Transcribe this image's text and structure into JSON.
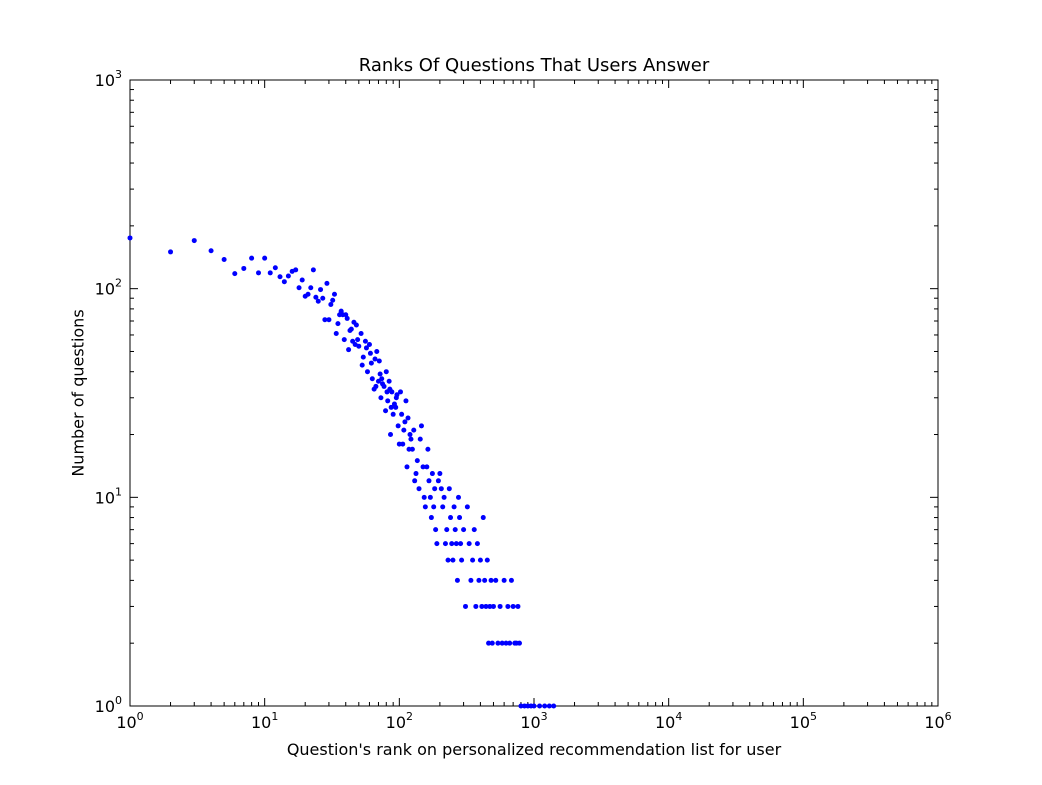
{
  "chart_data": {
    "type": "scatter",
    "title": "Ranks Of Questions That Users Answer",
    "xlabel": "Question's rank on personalized recommendation list for user",
    "ylabel": "Number of questions",
    "xscale": "log",
    "yscale": "log",
    "xlim": [
      1,
      1000000
    ],
    "ylim": [
      1,
      1000
    ],
    "xticks": [
      {
        "base": "10",
        "exp": "0"
      },
      {
        "base": "10",
        "exp": "1"
      },
      {
        "base": "10",
        "exp": "2"
      },
      {
        "base": "10",
        "exp": "3"
      },
      {
        "base": "10",
        "exp": "4"
      },
      {
        "base": "10",
        "exp": "5"
      },
      {
        "base": "10",
        "exp": "6"
      }
    ],
    "yticks": [
      {
        "base": "10",
        "exp": "0"
      },
      {
        "base": "10",
        "exp": "1"
      },
      {
        "base": "10",
        "exp": "2"
      },
      {
        "base": "10",
        "exp": "3"
      }
    ],
    "marker_color": "#0000ff",
    "grid": false,
    "points": [
      [
        1,
        175
      ],
      [
        2,
        150
      ],
      [
        3,
        170
      ],
      [
        4,
        152
      ],
      [
        5,
        138
      ],
      [
        6,
        118
      ],
      [
        7,
        125
      ],
      [
        8,
        140
      ],
      [
        9,
        119
      ],
      [
        10,
        140
      ],
      [
        11,
        119
      ],
      [
        12,
        126
      ],
      [
        13,
        114
      ],
      [
        14,
        108
      ],
      [
        15,
        115
      ],
      [
        16,
        121
      ],
      [
        17,
        123
      ],
      [
        18,
        101
      ],
      [
        19,
        110
      ],
      [
        20,
        92
      ],
      [
        21,
        94
      ],
      [
        22,
        101
      ],
      [
        23,
        123
      ],
      [
        24,
        91
      ],
      [
        25,
        87
      ],
      [
        26,
        99
      ],
      [
        27,
        90
      ],
      [
        28,
        71
      ],
      [
        29,
        106
      ],
      [
        30,
        71
      ],
      [
        31,
        84
      ],
      [
        32,
        88
      ],
      [
        33,
        94
      ],
      [
        34,
        61
      ],
      [
        35,
        68
      ],
      [
        36,
        75
      ],
      [
        37,
        78
      ],
      [
        38,
        75
      ],
      [
        39,
        57
      ],
      [
        40,
        75
      ],
      [
        41,
        72
      ],
      [
        42,
        51
      ],
      [
        43,
        63
      ],
      [
        44,
        64
      ],
      [
        45,
        56
      ],
      [
        46,
        69
      ],
      [
        47,
        54
      ],
      [
        48,
        67
      ],
      [
        49,
        57
      ],
      [
        50,
        53
      ],
      [
        52,
        61
      ],
      [
        53,
        43
      ],
      [
        54,
        47
      ],
      [
        56,
        56
      ],
      [
        57,
        52
      ],
      [
        58,
        40
      ],
      [
        60,
        54
      ],
      [
        61,
        49
      ],
      [
        62,
        44
      ],
      [
        63,
        37
      ],
      [
        65,
        33
      ],
      [
        66,
        46
      ],
      [
        67,
        34
      ],
      [
        68,
        50
      ],
      [
        70,
        36
      ],
      [
        71,
        45
      ],
      [
        72,
        39
      ],
      [
        73,
        30
      ],
      [
        74,
        37
      ],
      [
        75,
        35
      ],
      [
        77,
        34
      ],
      [
        79,
        26
      ],
      [
        80,
        40
      ],
      [
        81,
        32
      ],
      [
        82,
        29
      ],
      [
        84,
        36
      ],
      [
        85,
        33
      ],
      [
        86,
        20
      ],
      [
        87,
        27
      ],
      [
        88,
        32
      ],
      [
        90,
        25
      ],
      [
        92,
        28
      ],
      [
        94,
        27
      ],
      [
        95,
        30
      ],
      [
        96,
        31
      ],
      [
        98,
        22
      ],
      [
        100,
        18
      ],
      [
        102,
        32
      ],
      [
        104,
        25
      ],
      [
        106,
        18
      ],
      [
        108,
        21
      ],
      [
        110,
        23
      ],
      [
        112,
        29
      ],
      [
        114,
        14
      ],
      [
        116,
        24
      ],
      [
        118,
        17
      ],
      [
        120,
        20
      ],
      [
        122,
        19
      ],
      [
        125,
        17
      ],
      [
        128,
        21
      ],
      [
        130,
        12
      ],
      [
        133,
        13
      ],
      [
        136,
        15
      ],
      [
        140,
        11
      ],
      [
        143,
        19
      ],
      [
        146,
        22
      ],
      [
        150,
        14
      ],
      [
        153,
        10
      ],
      [
        156,
        9
      ],
      [
        160,
        14
      ],
      [
        163,
        17
      ],
      [
        166,
        12
      ],
      [
        170,
        10
      ],
      [
        173,
        8
      ],
      [
        176,
        13
      ],
      [
        180,
        9
      ],
      [
        183,
        11
      ],
      [
        186,
        7
      ],
      [
        190,
        6
      ],
      [
        195,
        12
      ],
      [
        200,
        13
      ],
      [
        205,
        11
      ],
      [
        210,
        9
      ],
      [
        215,
        10
      ],
      [
        220,
        6
      ],
      [
        225,
        7
      ],
      [
        230,
        5
      ],
      [
        235,
        11
      ],
      [
        240,
        8
      ],
      [
        245,
        6
      ],
      [
        250,
        5
      ],
      [
        255,
        9
      ],
      [
        260,
        7
      ],
      [
        265,
        6
      ],
      [
        270,
        4
      ],
      [
        275,
        10
      ],
      [
        280,
        8
      ],
      [
        285,
        6
      ],
      [
        290,
        5
      ],
      [
        300,
        7
      ],
      [
        310,
        3
      ],
      [
        320,
        9
      ],
      [
        330,
        6
      ],
      [
        340,
        4
      ],
      [
        350,
        5
      ],
      [
        360,
        7
      ],
      [
        370,
        3
      ],
      [
        380,
        6
      ],
      [
        390,
        4
      ],
      [
        400,
        5
      ],
      [
        410,
        3
      ],
      [
        420,
        8
      ],
      [
        430,
        4
      ],
      [
        440,
        3
      ],
      [
        450,
        5
      ],
      [
        460,
        2
      ],
      [
        470,
        3
      ],
      [
        480,
        4
      ],
      [
        490,
        2
      ],
      [
        500,
        3
      ],
      [
        520,
        4
      ],
      [
        540,
        2
      ],
      [
        560,
        3
      ],
      [
        580,
        2
      ],
      [
        600,
        4
      ],
      [
        620,
        2
      ],
      [
        640,
        3
      ],
      [
        660,
        2
      ],
      [
        680,
        4
      ],
      [
        700,
        3
      ],
      [
        720,
        2
      ],
      [
        740,
        2
      ],
      [
        760,
        3
      ],
      [
        780,
        2
      ],
      [
        800,
        1
      ],
      [
        850,
        1
      ],
      [
        900,
        1
      ],
      [
        950,
        1
      ],
      [
        1000,
        1
      ],
      [
        1100,
        1
      ],
      [
        1200,
        1
      ],
      [
        1300,
        1
      ],
      [
        1400,
        1
      ]
    ]
  }
}
